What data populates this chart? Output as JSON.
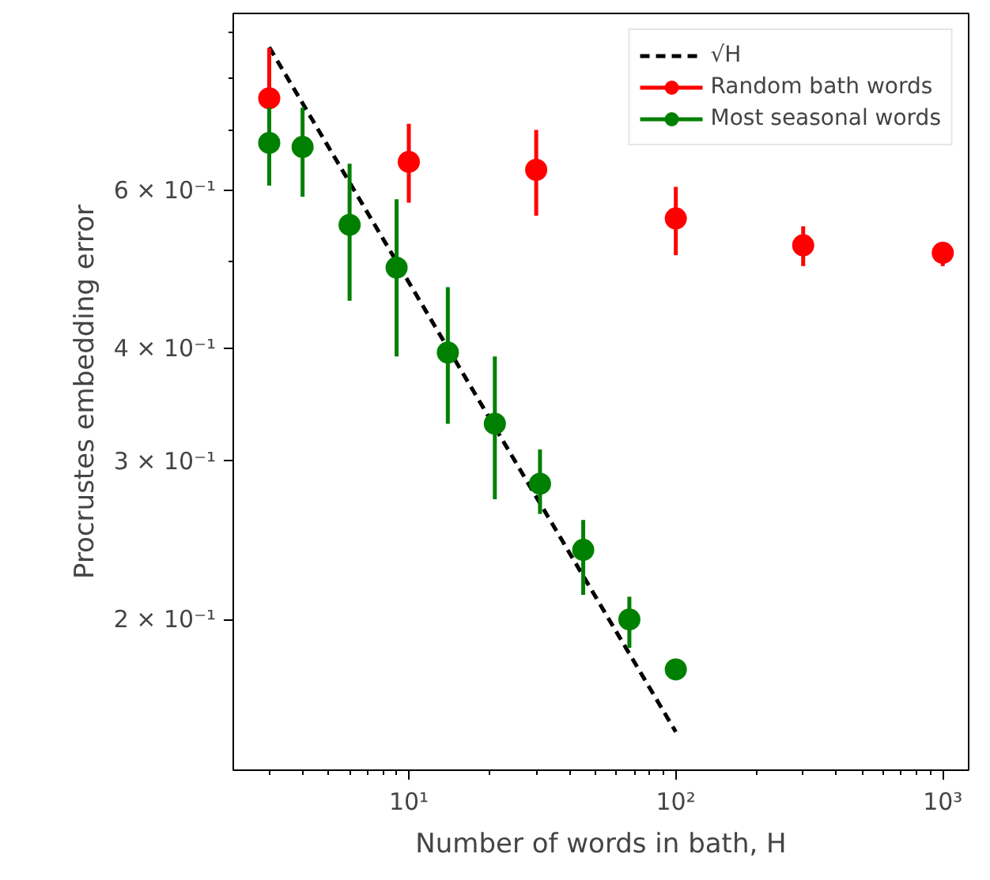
{
  "chart_data": {
    "type": "scatter",
    "xlabel": "Number of words in bath, H",
    "ylabel": "Procrustes embedding error",
    "log": "xy",
    "grid": false,
    "legend": "top right",
    "marker": "circle",
    "xlim": [
      2.2,
      1250
    ],
    "ylim": [
      0.136,
      0.943
    ],
    "xticks": [
      {
        "value": 3,
        "label": null
      },
      {
        "value": 4,
        "label": null
      },
      {
        "value": 5,
        "label": null
      },
      {
        "value": 6,
        "label": null
      },
      {
        "value": 7,
        "label": null
      },
      {
        "value": 8,
        "label": null
      },
      {
        "value": 9,
        "label": null
      },
      {
        "value": 10,
        "label": "10¹"
      },
      {
        "value": 20,
        "label": null
      },
      {
        "value": 30,
        "label": null
      },
      {
        "value": 40,
        "label": null
      },
      {
        "value": 50,
        "label": null
      },
      {
        "value": 60,
        "label": null
      },
      {
        "value": 70,
        "label": null
      },
      {
        "value": 80,
        "label": null
      },
      {
        "value": 90,
        "label": null
      },
      {
        "value": 100,
        "label": "10²"
      },
      {
        "value": 200,
        "label": null
      },
      {
        "value": 300,
        "label": null
      },
      {
        "value": 400,
        "label": null
      },
      {
        "value": 500,
        "label": null
      },
      {
        "value": 600,
        "label": null
      },
      {
        "value": 700,
        "label": null
      },
      {
        "value": 800,
        "label": null
      },
      {
        "value": 900,
        "label": null
      },
      {
        "value": 1000,
        "label": "10³"
      }
    ],
    "yticks": [
      {
        "value": 0.2,
        "label": "2 × 10⁻¹"
      },
      {
        "value": 0.3,
        "label": "3 × 10⁻¹"
      },
      {
        "value": 0.4,
        "label": "4 × 10⁻¹"
      },
      {
        "value": 0.5,
        "label": null
      },
      {
        "value": 0.6,
        "label": "6 × 10⁻¹"
      },
      {
        "value": 0.7,
        "label": null
      },
      {
        "value": 0.8,
        "label": null
      },
      {
        "value": 0.9,
        "label": null
      }
    ],
    "series": [
      {
        "name": "√H",
        "type": "line",
        "line_style": "dashed",
        "marker": "none",
        "color": "#000000",
        "x": [
          3,
          100
        ],
        "values": [
          0.865,
          0.15
        ]
      },
      {
        "name": "Random bath words",
        "color": "#ff0000",
        "x": [
          3,
          10,
          30,
          100,
          300,
          1000
        ],
        "values": [
          0.759,
          0.645,
          0.632,
          0.558,
          0.521,
          0.511
        ],
        "errors": [
          [
            0.664,
            0.863
          ],
          [
            0.581,
            0.711
          ],
          [
            0.562,
            0.7
          ],
          [
            0.508,
            0.605
          ],
          [
            0.494,
            0.547
          ],
          [
            0.494,
            0.525
          ]
        ]
      },
      {
        "name": "Most seasonal words",
        "color": "#008000",
        "x": [
          3,
          4,
          6,
          9,
          14,
          21,
          31,
          45,
          67,
          100
        ],
        "values": [
          0.677,
          0.67,
          0.549,
          0.492,
          0.396,
          0.33,
          0.283,
          0.239,
          0.2,
          0.176
        ],
        "errors": [
          [
            0.607,
            0.741
          ],
          [
            0.59,
            0.741
          ],
          [
            0.452,
            0.642
          ],
          [
            0.392,
            0.586
          ],
          [
            0.33,
            0.468
          ],
          [
            0.272,
            0.392
          ],
          [
            0.262,
            0.309
          ],
          [
            0.213,
            0.258
          ],
          [
            0.186,
            0.212
          ],
          null
        ]
      }
    ]
  }
}
